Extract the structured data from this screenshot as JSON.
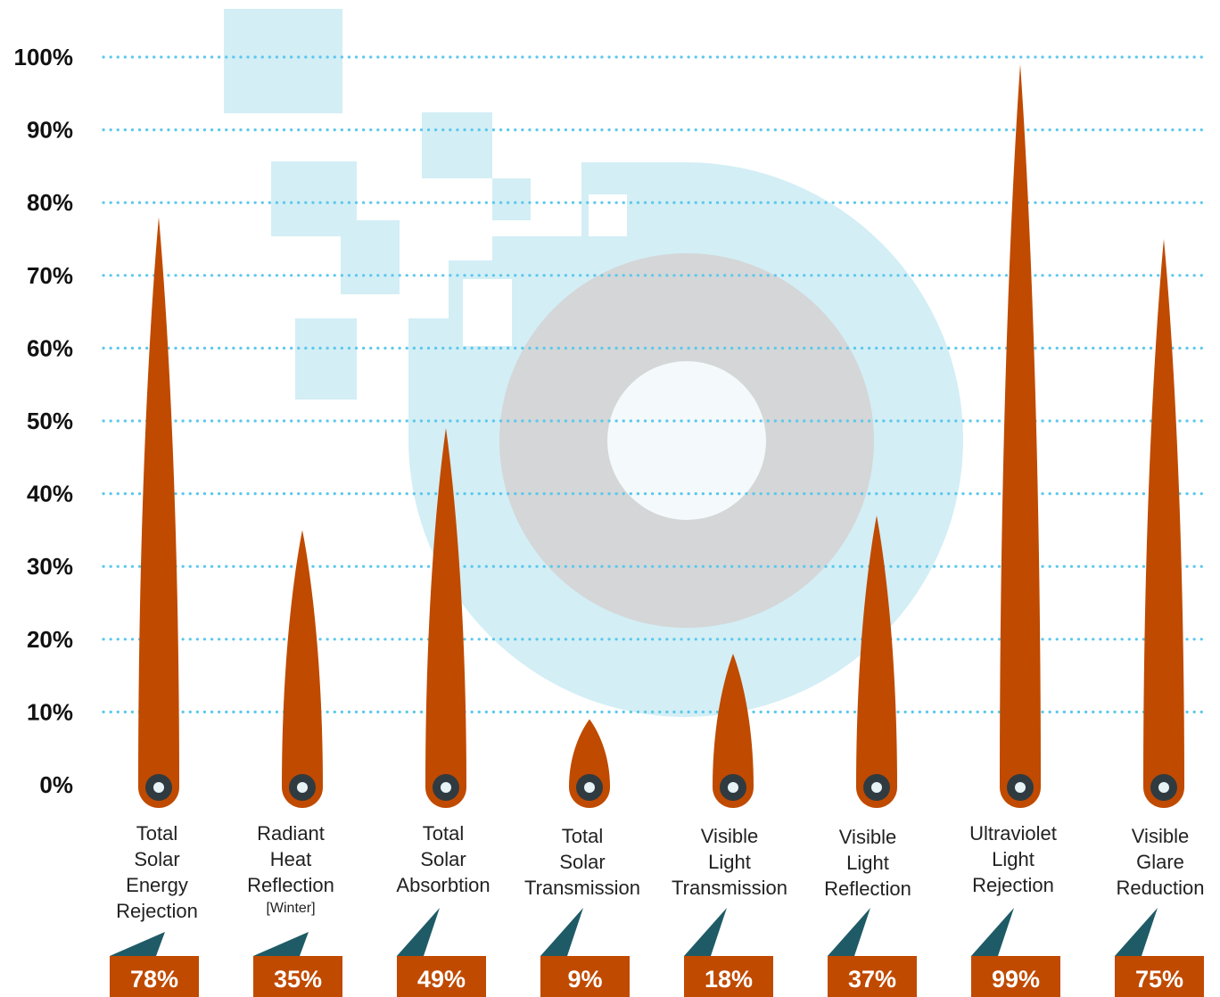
{
  "colors": {
    "needle": "#c04a00",
    "pivot": "#2f3b40",
    "pivot_center": "#e8f3f6",
    "grid": "#5bc8ec",
    "backdrop": "#d3eef5",
    "ring": "#d4d6d7",
    "ring_center": "#f4f9fb",
    "pointer": "#1f5b66",
    "value_box": "#c04a00"
  },
  "chart_data": {
    "type": "bar",
    "ylim": [
      0,
      100
    ],
    "yticks": [
      "0%",
      "10%",
      "20%",
      "30%",
      "40%",
      "50%",
      "60%",
      "70%",
      "80%",
      "90%",
      "100%"
    ],
    "grid": "dotted horizontal",
    "categories": [
      {
        "lines": [
          "Total",
          "Solar",
          "Energy",
          "Rejection"
        ],
        "sub": ""
      },
      {
        "lines": [
          "Radiant",
          "Heat",
          "Reflection"
        ],
        "sub": "[Winter]"
      },
      {
        "lines": [
          "Total",
          "Solar",
          "Absorbtion"
        ],
        "sub": ""
      },
      {
        "lines": [
          "Total",
          "Solar",
          "Transmission"
        ],
        "sub": ""
      },
      {
        "lines": [
          "Visible",
          "Light",
          "Transmission"
        ],
        "sub": ""
      },
      {
        "lines": [
          "Visible",
          "Light",
          "Reflection"
        ],
        "sub": ""
      },
      {
        "lines": [
          "Ultraviolet",
          "Light",
          "Rejection"
        ],
        "sub": ""
      },
      {
        "lines": [
          "Visible",
          "Glare",
          "Reduction"
        ],
        "sub": ""
      }
    ],
    "values": [
      78,
      35,
      49,
      9,
      18,
      37,
      99,
      75
    ],
    "value_labels": [
      "78%",
      "35%",
      "49%",
      "9%",
      "18%",
      "37%",
      "99%",
      "75%"
    ]
  }
}
